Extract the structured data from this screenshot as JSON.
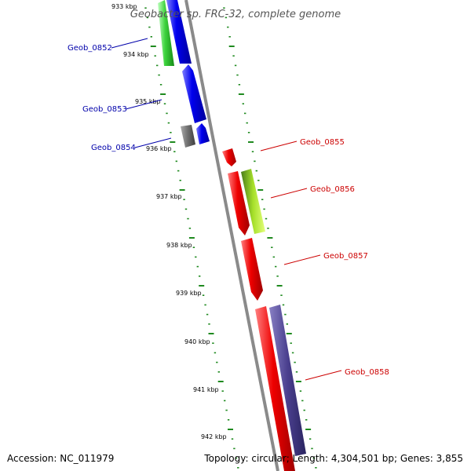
{
  "title": "Geobacter sp. FRC-32, complete genome",
  "footer": {
    "accession": "Accession: NC_011979",
    "topology": "Topology: circular; Length: 4,304,501 bp; Genes: 3,855"
  },
  "colors": {
    "backbone": "#8a8a8a",
    "ruler": "#1f8a1f",
    "label_left": "#0000aa",
    "label_right": "#cc0000"
  },
  "ruler_labels": [
    "933 kbp",
    "934 kbp",
    "935 kbp",
    "936 kbp",
    "937 kbp",
    "938 kbp",
    "939 kbp",
    "940 kbp",
    "941 kbp",
    "942 kbp"
  ],
  "genes": [
    {
      "id": "Geob_0852",
      "label": "Geob_0852",
      "side": "left"
    },
    {
      "id": "Geob_0853",
      "label": "Geob_0853",
      "side": "left"
    },
    {
      "id": "Geob_0854",
      "label": "Geob_0854",
      "side": "left"
    },
    {
      "id": "Geob_0855",
      "label": "Geob_0855",
      "side": "right"
    },
    {
      "id": "Geob_0856",
      "label": "Geob_0856",
      "side": "right"
    },
    {
      "id": "Geob_0857",
      "label": "Geob_0857",
      "side": "right"
    },
    {
      "id": "Geob_0858",
      "label": "Geob_0858",
      "side": "right"
    }
  ]
}
